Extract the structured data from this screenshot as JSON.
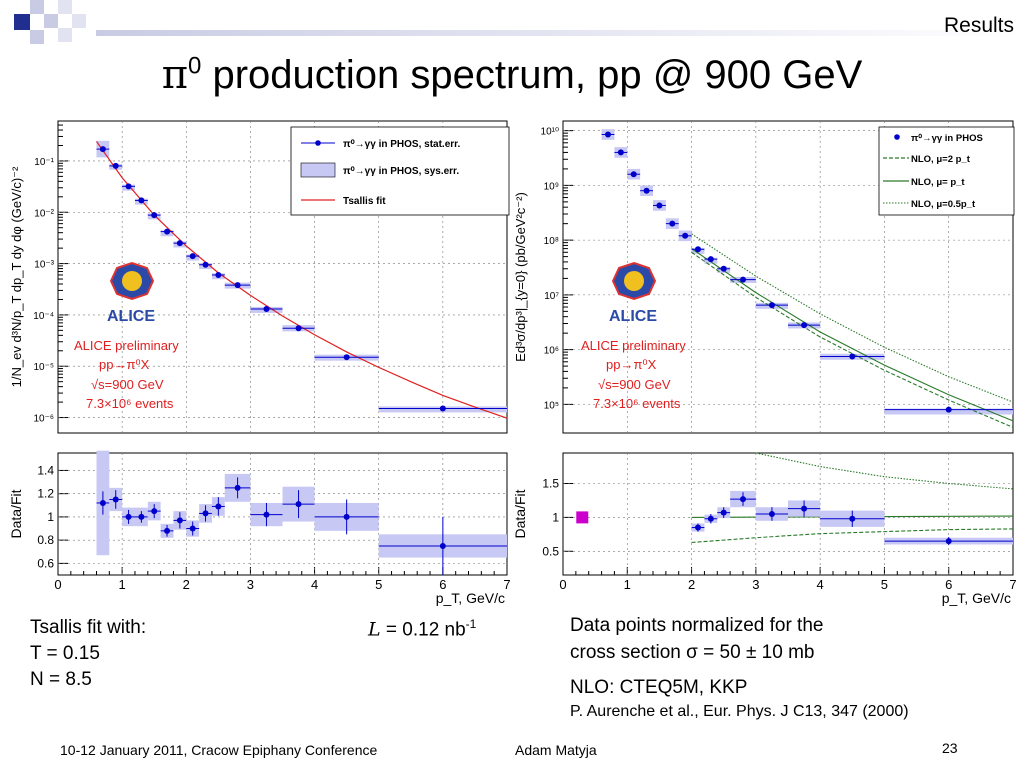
{
  "slide": {
    "section": "Results",
    "title_pi": "π",
    "title_sup": "0",
    "title_rest": " production spectrum, pp @ 900 GeV",
    "left_notes": [
      "Tsallis fit with:",
      "T = 0.15",
      "N = 8.5"
    ],
    "lumi_symbol": "L",
    "lumi_text": " = 0.12 nb",
    "lumi_sup": "-1",
    "right_notes": [
      "Data points normalized for the",
      "cross section σ = 50 ± 10 mb",
      "NLO: CTEQ5M, KKP"
    ],
    "reference": "P. Aurenche et al., Eur. Phys. J C13, 347 (2000)",
    "footer_left": "10-12 January 2011, Cracow Epiphany Conference",
    "footer_author": "Adam Matyja",
    "page_number": "23",
    "alice_logo_text": "ALICE",
    "alice_annotation": [
      "ALICE preliminary",
      "pp→π⁰X",
      "√s=900 GeV",
      "7.3×10⁶ events"
    ],
    "colors": {
      "points": "#0000cc",
      "syserr": "#c8c8f5",
      "fit": "#e02020",
      "nlo": "#2a7a2a",
      "annotation": "#e02020",
      "deco": "#1f2e8f",
      "extra_marker": "#cc00cc"
    }
  },
  "chart_data": [
    {
      "type": "scatter",
      "panel": "left spectrum",
      "ylabel": "1/N_ev d³N/p_T dp_T dy dφ (GeV/c)⁻²",
      "xlim": [
        0,
        7
      ],
      "log_y": true,
      "ylim": [
        5e-07,
        0.6
      ],
      "ytick_labels": [
        "10⁻¹",
        "10⁻²",
        "10⁻³",
        "10⁻⁴",
        "10⁻⁵",
        "10⁻⁶"
      ],
      "grid": true,
      "legend": {
        "position": "top-right",
        "entries": [
          "π⁰→γγ in PHOS, stat.err.",
          "π⁰→γγ in PHOS, sys.err.",
          "Tsallis fit"
        ]
      },
      "x": [
        0.7,
        0.9,
        1.1,
        1.3,
        1.5,
        1.7,
        1.9,
        2.1,
        2.3,
        2.5,
        2.8,
        3.25,
        3.75,
        4.5,
        6.0
      ],
      "xerr": [
        0.1,
        0.1,
        0.1,
        0.1,
        0.1,
        0.1,
        0.1,
        0.1,
        0.1,
        0.1,
        0.2,
        0.25,
        0.25,
        0.5,
        1.0
      ],
      "y": [
        0.17,
        0.08,
        0.032,
        0.017,
        0.0088,
        0.0042,
        0.0025,
        0.0014,
        0.00095,
        0.0006,
        0.00038,
        0.00013,
        5.5e-05,
        1.5e-05,
        1.5e-06
      ],
      "fit": {
        "name": "Tsallis fit",
        "x": [
          0.6,
          1.0,
          1.5,
          2.0,
          2.5,
          3.0,
          3.5,
          4.0,
          4.5,
          5.0,
          5.5,
          6.0,
          6.5,
          7.0
        ],
        "y": [
          0.24,
          0.047,
          0.0088,
          0.0022,
          0.00066,
          0.00024,
          9.5e-05,
          4.1e-05,
          1.9e-05,
          9.5e-06,
          5e-06,
          2.7e-06,
          1.6e-06,
          9.7e-07
        ]
      }
    },
    {
      "type": "scatter",
      "panel": "left ratio",
      "xlabel": "p_T, GeV/c",
      "ylabel": "Data/Fit",
      "xlim": [
        0,
        7
      ],
      "ylim": [
        0.5,
        1.55
      ],
      "xtick_labels": [
        "0",
        "1",
        "2",
        "3",
        "4",
        "5",
        "6",
        "7"
      ],
      "ytick_labels": [
        "1.4",
        "1.2",
        "1",
        "0.8",
        "0.6"
      ],
      "x": [
        0.7,
        0.9,
        1.1,
        1.3,
        1.5,
        1.7,
        1.9,
        2.1,
        2.3,
        2.5,
        2.8,
        3.25,
        3.75,
        4.5,
        6.0
      ],
      "xerr": [
        0.1,
        0.1,
        0.1,
        0.1,
        0.1,
        0.1,
        0.1,
        0.1,
        0.1,
        0.1,
        0.2,
        0.25,
        0.25,
        0.5,
        1.0
      ],
      "y": [
        1.12,
        1.15,
        1.0,
        1.0,
        1.05,
        0.88,
        0.97,
        0.9,
        1.03,
        1.09,
        1.25,
        1.02,
        1.11,
        1.0,
        0.75
      ],
      "yerr": [
        0.1,
        0.08,
        0.06,
        0.05,
        0.06,
        0.05,
        0.07,
        0.06,
        0.07,
        0.08,
        0.09,
        0.1,
        0.12,
        0.15,
        0.25
      ],
      "syserr": [
        0.45,
        0.1,
        0.08,
        0.08,
        0.08,
        0.06,
        0.08,
        0.07,
        0.08,
        0.08,
        0.12,
        0.1,
        0.15,
        0.12,
        0.1
      ]
    },
    {
      "type": "scatter",
      "panel": "right spectrum",
      "ylabel": "Ed³σ/dp³|_{y=0} (pb/GeV²c⁻²)",
      "xlim": [
        0,
        7
      ],
      "log_y": true,
      "ylim": [
        30000,
        15000000000.0
      ],
      "ytick_labels": [
        "10¹⁰",
        "10⁹",
        "10⁸",
        "10⁷",
        "10⁶",
        "10⁵"
      ],
      "grid": true,
      "legend": {
        "position": "top-right",
        "entries": [
          "π⁰→γγ in PHOS",
          "NLO, μ=2 p_t",
          "NLO, μ= p_t",
          "NLO, μ=0.5p_t"
        ]
      },
      "x": [
        0.7,
        0.9,
        1.1,
        1.3,
        1.5,
        1.7,
        1.9,
        2.1,
        2.3,
        2.5,
        2.8,
        3.25,
        3.75,
        4.5,
        6.0
      ],
      "xerr": [
        0.1,
        0.1,
        0.1,
        0.1,
        0.1,
        0.1,
        0.1,
        0.1,
        0.1,
        0.1,
        0.2,
        0.25,
        0.25,
        0.5,
        1.0
      ],
      "y": [
        8500000000,
        4000000000,
        1600000000,
        800000000,
        430000000,
        200000000,
        120000000,
        68000000,
        45000000,
        30000000,
        19000000,
        6500000,
        2800000,
        750000,
        80000
      ],
      "series": [
        {
          "name": "NLO, μ=2 p_t",
          "x": [
            2.0,
            3.0,
            4.0,
            5.0,
            6.0,
            7.0
          ],
          "y": [
            60000000,
            9000000,
            1700000,
            420000,
            120000,
            38000
          ]
        },
        {
          "name": "NLO, μ= p_t",
          "x": [
            2.0,
            3.0,
            4.0,
            5.0,
            6.0,
            7.0
          ],
          "y": [
            70000000,
            11000000,
            2100000,
            520000,
            150000,
            50000
          ]
        },
        {
          "name": "NLO, μ=0.5p_t",
          "x": [
            2.0,
            3.0,
            4.0,
            5.0,
            6.0,
            7.0
          ],
          "y": [
            130000000,
            22000000,
            4500000,
            1100000,
            320000,
            110000
          ]
        }
      ]
    },
    {
      "type": "scatter",
      "panel": "right ratio",
      "xlabel": "p_T, GeV/c",
      "ylabel": "Data/Fit",
      "xlim": [
        0,
        7
      ],
      "ylim": [
        0.15,
        1.95
      ],
      "xtick_labels": [
        "0",
        "1",
        "2",
        "3",
        "4",
        "5",
        "6",
        "7"
      ],
      "ytick_labels": [
        "1.5",
        "1",
        "0.5"
      ],
      "x": [
        2.1,
        2.3,
        2.5,
        2.8,
        3.25,
        3.75,
        4.5,
        6.0
      ],
      "xerr": [
        0.1,
        0.1,
        0.1,
        0.2,
        0.25,
        0.25,
        0.5,
        1.0
      ],
      "y": [
        0.85,
        0.98,
        1.07,
        1.27,
        1.05,
        1.13,
        0.98,
        0.65
      ],
      "yerr": [
        0.06,
        0.07,
        0.08,
        0.1,
        0.1,
        0.12,
        0.12,
        0.06
      ],
      "syserr": [
        0.06,
        0.06,
        0.08,
        0.12,
        0.1,
        0.12,
        0.12,
        0.05
      ],
      "extra_marker": {
        "x": 0.3,
        "y": 1.0
      },
      "series": [
        {
          "name": "NLO, μ= p_t",
          "x": [
            2.0,
            7.0
          ],
          "y": [
            1.0,
            1.02
          ]
        },
        {
          "name": "NLO, μ=2 p_t",
          "x": [
            2.0,
            3.0,
            4.0,
            5.0,
            6.0,
            7.0
          ],
          "y": [
            0.63,
            0.7,
            0.76,
            0.79,
            0.82,
            0.83
          ]
        },
        {
          "name": "NLO, μ=0.5p_t",
          "x": [
            3.0,
            4.0,
            5.0,
            6.0,
            7.0
          ],
          "y": [
            1.95,
            1.75,
            1.6,
            1.5,
            1.42
          ]
        }
      ]
    }
  ]
}
